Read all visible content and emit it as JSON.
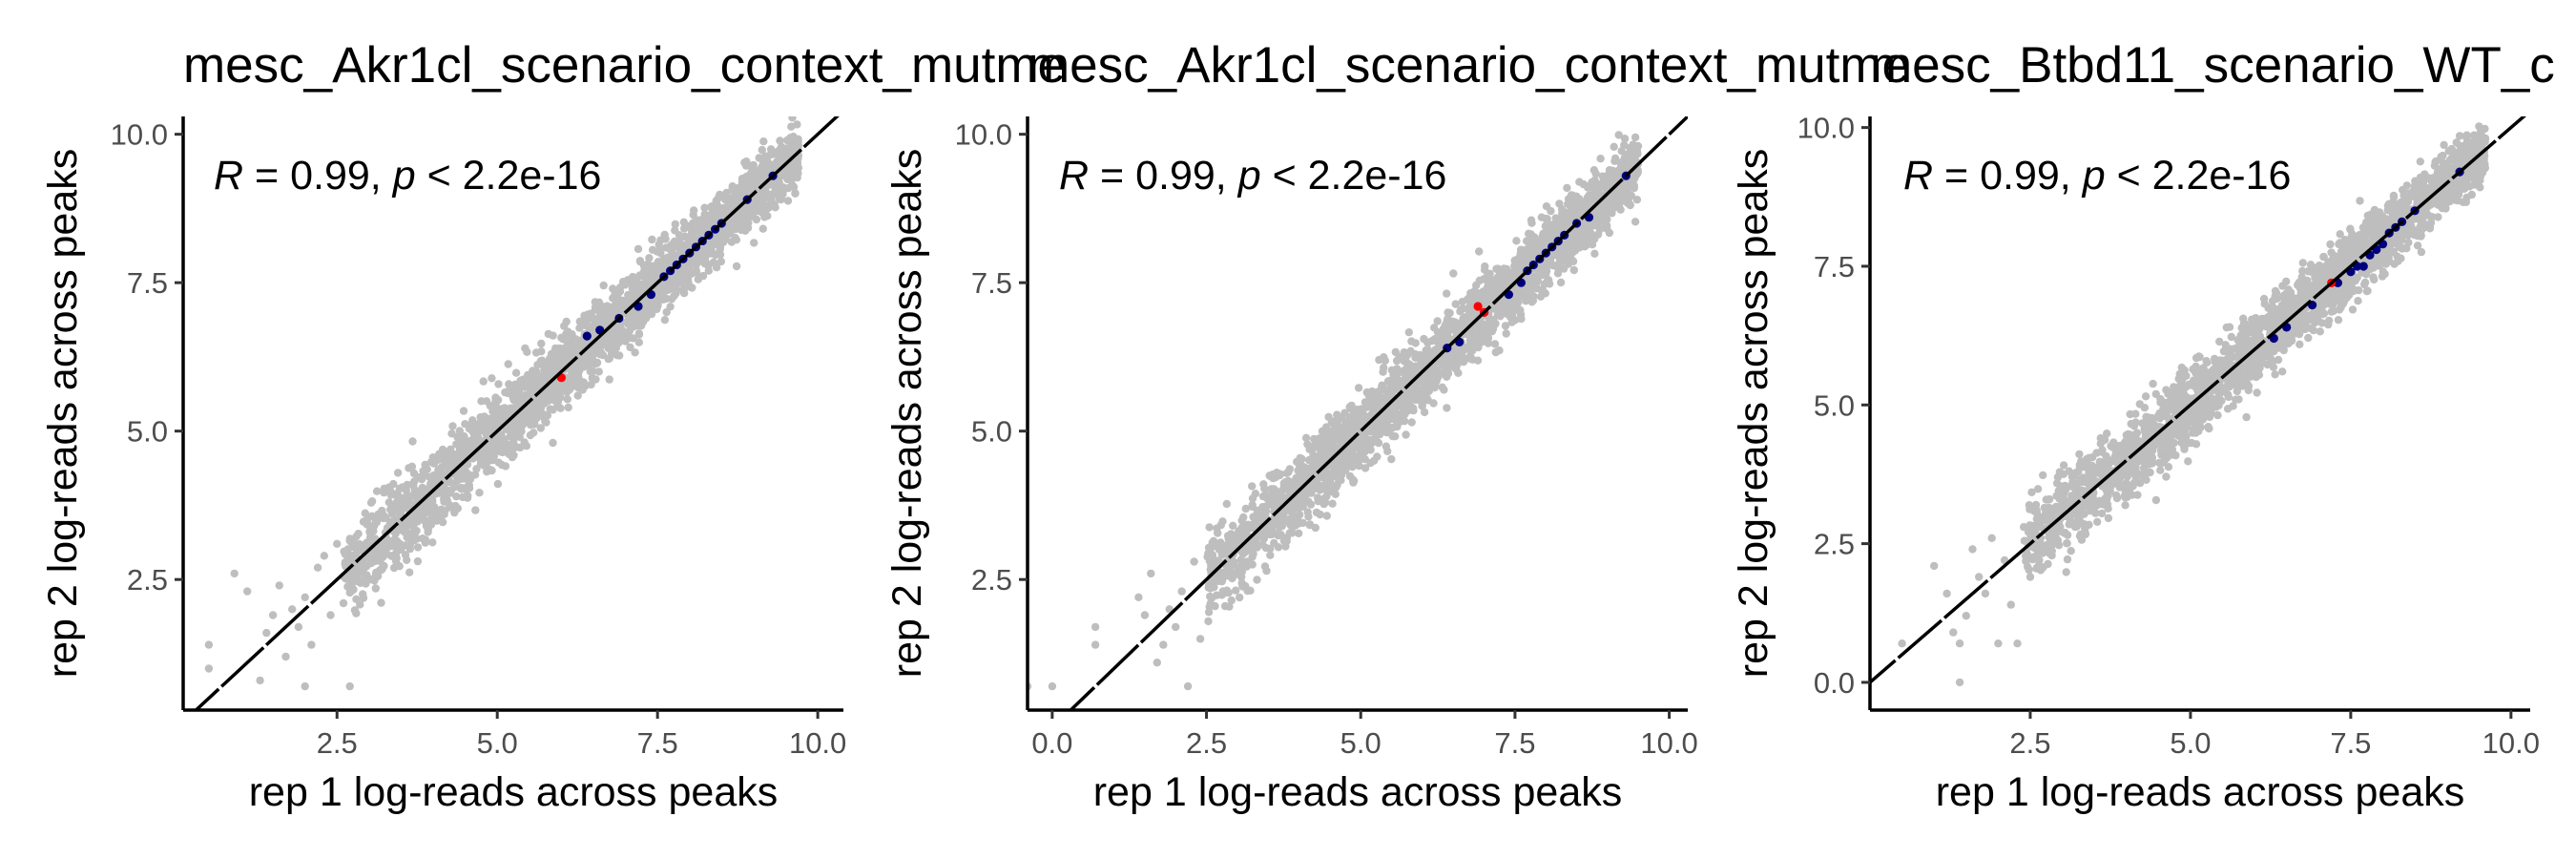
{
  "chart_data": [
    {
      "type": "scatter",
      "title": "mesc_Akr1cl_scenario_context_mutme",
      "xlabel": "rep 1 log-reads across peaks",
      "ylabel": "rep 2 log-reads across peaks",
      "annotation": {
        "R": "0.99",
        "p": "< 2.2e-16"
      },
      "xlim": [
        0.1,
        10.4
      ],
      "ylim": [
        0.3,
        10.3
      ],
      "x_ticks": [
        2.5,
        5.0,
        7.5,
        10.0
      ],
      "x_tick_labels": [
        "2.5",
        "5.0",
        "7.5",
        "10.0"
      ],
      "y_ticks": [
        2.5,
        5.0,
        7.5,
        10.0
      ],
      "y_tick_labels": [
        "2.5",
        "5.0",
        "7.5",
        "10.0"
      ],
      "reference_line": {
        "slope": 1,
        "intercept": 0
      },
      "grid": false,
      "series": [
        {
          "color": "#bebebe",
          "cloud": {
            "x_range": [
              2.6,
              9.7
            ],
            "spread": 0.26
          },
          "points": [
            [
              0.5,
              1.0
            ],
            [
              0.5,
              1.4
            ],
            [
              0.9,
              2.6
            ],
            [
              1.1,
              2.3
            ],
            [
              1.3,
              0.8
            ],
            [
              1.4,
              1.6
            ],
            [
              1.5,
              1.9
            ],
            [
              1.6,
              2.4
            ],
            [
              1.7,
              1.2
            ],
            [
              1.8,
              2.0
            ],
            [
              1.9,
              1.7
            ],
            [
              2.0,
              2.2
            ],
            [
              2.1,
              1.4
            ],
            [
              2.2,
              2.7
            ],
            [
              2.0,
              0.7
            ],
            [
              2.7,
              0.7
            ],
            [
              2.4,
              1.9
            ],
            [
              2.5,
              3.1
            ],
            [
              2.6,
              2.1
            ],
            [
              2.3,
              2.9
            ]
          ]
        },
        {
          "color": "#00007f",
          "points": [
            [
              6.4,
              6.6
            ],
            [
              6.6,
              6.7
            ],
            [
              6.9,
              6.9
            ],
            [
              7.2,
              7.1
            ],
            [
              7.4,
              7.3
            ],
            [
              7.6,
              7.6
            ],
            [
              7.7,
              7.7
            ],
            [
              7.8,
              7.8
            ],
            [
              7.9,
              7.9
            ],
            [
              8.0,
              8.0
            ],
            [
              8.1,
              8.1
            ],
            [
              8.2,
              8.2
            ],
            [
              8.3,
              8.3
            ],
            [
              8.4,
              8.4
            ],
            [
              8.5,
              8.5
            ],
            [
              8.9,
              8.9
            ],
            [
              9.3,
              9.3
            ]
          ]
        },
        {
          "color": "#ff0000",
          "points": [
            [
              6.0,
              5.9
            ]
          ]
        }
      ]
    },
    {
      "type": "scatter",
      "title": "mesc_Akr1cl_scenario_context_mutme",
      "xlabel": "rep 1 log-reads across peaks",
      "ylabel": "rep 2 log-reads across peaks",
      "annotation": {
        "R": "0.99",
        "p": "< 2.2e-16"
      },
      "xlim": [
        -0.4,
        10.3
      ],
      "ylim": [
        0.3,
        10.3
      ],
      "x_ticks": [
        0.0,
        2.5,
        5.0,
        7.5,
        10.0
      ],
      "x_tick_labels": [
        "0.0",
        "2.5",
        "5.0",
        "7.5",
        "10.0"
      ],
      "y_ticks": [
        2.5,
        5.0,
        7.5,
        10.0
      ],
      "y_tick_labels": [
        "2.5",
        "5.0",
        "7.5",
        "10.0"
      ],
      "reference_line": {
        "slope": 1,
        "intercept": 0
      },
      "grid": false,
      "series": [
        {
          "color": "#bebebe",
          "cloud": {
            "x_range": [
              2.5,
              9.5
            ],
            "spread": 0.26
          },
          "points": [
            [
              -0.4,
              0.7
            ],
            [
              0.0,
              0.7
            ],
            [
              0.7,
              1.7
            ],
            [
              0.7,
              1.4
            ],
            [
              1.4,
              2.2
            ],
            [
              1.5,
              1.9
            ],
            [
              1.6,
              2.6
            ],
            [
              1.7,
              1.1
            ],
            [
              1.8,
              1.4
            ],
            [
              1.9,
              2.0
            ],
            [
              2.0,
              1.7
            ],
            [
              2.1,
              2.3
            ],
            [
              2.2,
              0.7
            ],
            [
              2.3,
              2.8
            ],
            [
              2.4,
              1.5
            ],
            [
              2.6,
              3.1
            ],
            [
              2.7,
              2.5
            ]
          ]
        },
        {
          "color": "#00007f",
          "points": [
            [
              6.4,
              6.4
            ],
            [
              6.6,
              6.5
            ],
            [
              7.0,
              7.0
            ],
            [
              7.4,
              7.3
            ],
            [
              7.6,
              7.5
            ],
            [
              7.7,
              7.7
            ],
            [
              7.8,
              7.8
            ],
            [
              7.9,
              7.9
            ],
            [
              8.0,
              8.0
            ],
            [
              8.1,
              8.1
            ],
            [
              8.2,
              8.2
            ],
            [
              8.3,
              8.3
            ],
            [
              8.5,
              8.5
            ],
            [
              8.7,
              8.6
            ],
            [
              9.3,
              9.3
            ]
          ]
        },
        {
          "color": "#ff0000",
          "points": [
            [
              6.9,
              7.1
            ],
            [
              7.0,
              7.0
            ]
          ]
        }
      ]
    },
    {
      "type": "scatter",
      "title": "mesc_Btbd11_scenario_WT_c",
      "xlabel": "rep 1 log-reads across peaks",
      "ylabel": "rep 2 log-reads across peaks",
      "annotation": {
        "R": "0.99",
        "p": "< 2.2e-16"
      },
      "xlim": [
        0.0,
        10.3
      ],
      "ylim": [
        -0.5,
        10.2
      ],
      "x_ticks": [
        2.5,
        5.0,
        7.5,
        10.0
      ],
      "x_tick_labels": [
        "2.5",
        "5.0",
        "7.5",
        "10.0"
      ],
      "y_ticks": [
        0.0,
        2.5,
        5.0,
        7.5,
        10.0
      ],
      "y_tick_labels": [
        "0.0",
        "2.5",
        "5.0",
        "7.5",
        "10.0"
      ],
      "reference_line": {
        "slope": 1,
        "intercept": 0
      },
      "grid": false,
      "series": [
        {
          "color": "#bebebe",
          "cloud": {
            "x_range": [
              2.4,
              9.6
            ],
            "spread": 0.27
          },
          "points": [
            [
              0.5,
              0.7
            ],
            [
              1.0,
              2.1
            ],
            [
              1.2,
              1.6
            ],
            [
              1.3,
              0.9
            ],
            [
              1.4,
              0.0
            ],
            [
              1.4,
              0.7
            ],
            [
              1.5,
              1.2
            ],
            [
              1.6,
              2.4
            ],
            [
              1.7,
              1.9
            ],
            [
              1.8,
              1.6
            ],
            [
              1.9,
              2.6
            ],
            [
              2.0,
              0.7
            ],
            [
              2.1,
              2.2
            ],
            [
              2.2,
              1.4
            ],
            [
              2.3,
              0.7
            ],
            [
              2.4,
              2.8
            ],
            [
              2.5,
              1.9
            ],
            [
              2.6,
              3.1
            ],
            [
              2.7,
              2.4
            ],
            [
              2.8,
              3.3
            ]
          ]
        },
        {
          "color": "#00007f",
          "points": [
            [
              6.3,
              6.2
            ],
            [
              6.5,
              6.4
            ],
            [
              6.9,
              6.8
            ],
            [
              7.3,
              7.2
            ],
            [
              7.5,
              7.4
            ],
            [
              7.6,
              7.5
            ],
            [
              7.7,
              7.5
            ],
            [
              7.8,
              7.7
            ],
            [
              7.9,
              7.8
            ],
            [
              8.0,
              7.9
            ],
            [
              8.1,
              8.1
            ],
            [
              8.2,
              8.2
            ],
            [
              8.3,
              8.3
            ],
            [
              8.5,
              8.5
            ],
            [
              9.2,
              9.2
            ]
          ]
        },
        {
          "color": "#ff0000",
          "points": [
            [
              7.2,
              7.2
            ]
          ]
        }
      ]
    }
  ]
}
